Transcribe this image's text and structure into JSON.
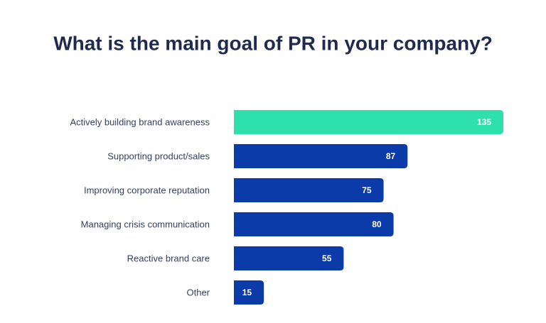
{
  "chart_data": {
    "type": "bar",
    "orientation": "horizontal",
    "title": "What is the main goal of PR in your company?",
    "categories": [
      "Actively building brand awareness",
      "Supporting product/sales",
      "Improving corporate reputation",
      "Managing crisis communication",
      "Reactive brand care",
      "Other"
    ],
    "values": [
      135,
      87,
      75,
      80,
      55,
      15
    ],
    "colors": [
      "#2ee0ae",
      "#0b3aa9",
      "#0b3aa9",
      "#0b3aa9",
      "#0b3aa9",
      "#0b3aa9"
    ]
  }
}
